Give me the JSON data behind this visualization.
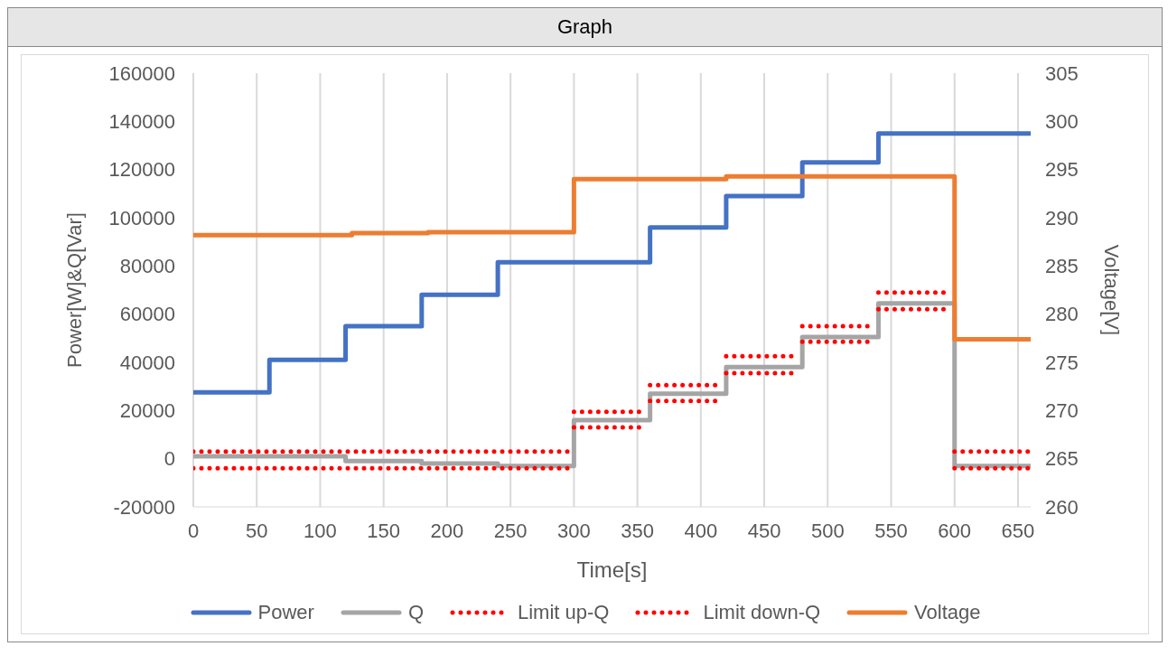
{
  "chart_data": {
    "type": "step",
    "title": "Graph",
    "xlabel": "Time[s]",
    "ylabel": "Power[W]&Q[Var]",
    "y2label": "Voltage[V]",
    "xlim": [
      0,
      660
    ],
    "xticks": [
      0,
      50,
      100,
      150,
      200,
      250,
      300,
      350,
      400,
      450,
      500,
      550,
      600,
      650
    ],
    "ylim": [
      -20000,
      160000
    ],
    "yticks": [
      -20000,
      0,
      20000,
      40000,
      60000,
      80000,
      100000,
      120000,
      140000,
      160000
    ],
    "y2lim": [
      260,
      305
    ],
    "y2ticks": [
      260,
      265,
      270,
      275,
      280,
      285,
      290,
      295,
      300,
      305
    ],
    "grid": true,
    "legend": "bottom",
    "marker": "none",
    "series": [
      {
        "name": "Power",
        "color": "#4472c4",
        "line_style": "solid",
        "x": [
          0,
          60,
          120,
          180,
          240,
          360,
          420,
          480,
          540,
          660
        ],
        "values": [
          27500,
          41000,
          55000,
          68000,
          81500,
          96000,
          109000,
          123000,
          135000,
          135000
        ]
      },
      {
        "name": "Q",
        "color": "#a5a5a5",
        "line_style": "solid",
        "x": [
          0,
          120,
          180,
          240,
          300,
          360,
          420,
          480,
          540,
          600,
          660
        ],
        "values": [
          1000,
          -1000,
          -2000,
          -3000,
          16000,
          27000,
          38000,
          50500,
          64500,
          -3000,
          -3000
        ]
      },
      {
        "name": "Limit up-Q",
        "color": "#ff0000",
        "line_style": "dotted",
        "x": [
          0,
          295,
          null,
          300,
          357,
          null,
          360,
          417,
          null,
          420,
          477,
          null,
          480,
          537,
          null,
          540,
          597,
          null,
          600,
          660
        ],
        "values": [
          3000,
          3000,
          null,
          19500,
          19500,
          null,
          30500,
          30500,
          null,
          42500,
          42500,
          null,
          55000,
          55000,
          null,
          69000,
          69000,
          null,
          3000,
          3000
        ]
      },
      {
        "name": "Limit down-Q",
        "color": "#ff0000",
        "line_style": "dotted",
        "x": [
          0,
          295,
          null,
          300,
          357,
          null,
          360,
          417,
          null,
          420,
          477,
          null,
          480,
          537,
          null,
          540,
          597,
          null,
          600,
          660
        ],
        "values": [
          -4000,
          -4000,
          null,
          13000,
          13000,
          null,
          24000,
          24000,
          null,
          35500,
          35500,
          null,
          48500,
          48500,
          null,
          62000,
          62000,
          null,
          -4000,
          -4000
        ]
      },
      {
        "name": "Voltage",
        "color": "#ed7d31",
        "line_style": "solid",
        "axis": "y2",
        "x": [
          0,
          125,
          185,
          300,
          420,
          600,
          660
        ],
        "values": [
          288.2,
          288.4,
          288.5,
          294,
          294.3,
          277.4,
          277.4
        ]
      }
    ]
  }
}
